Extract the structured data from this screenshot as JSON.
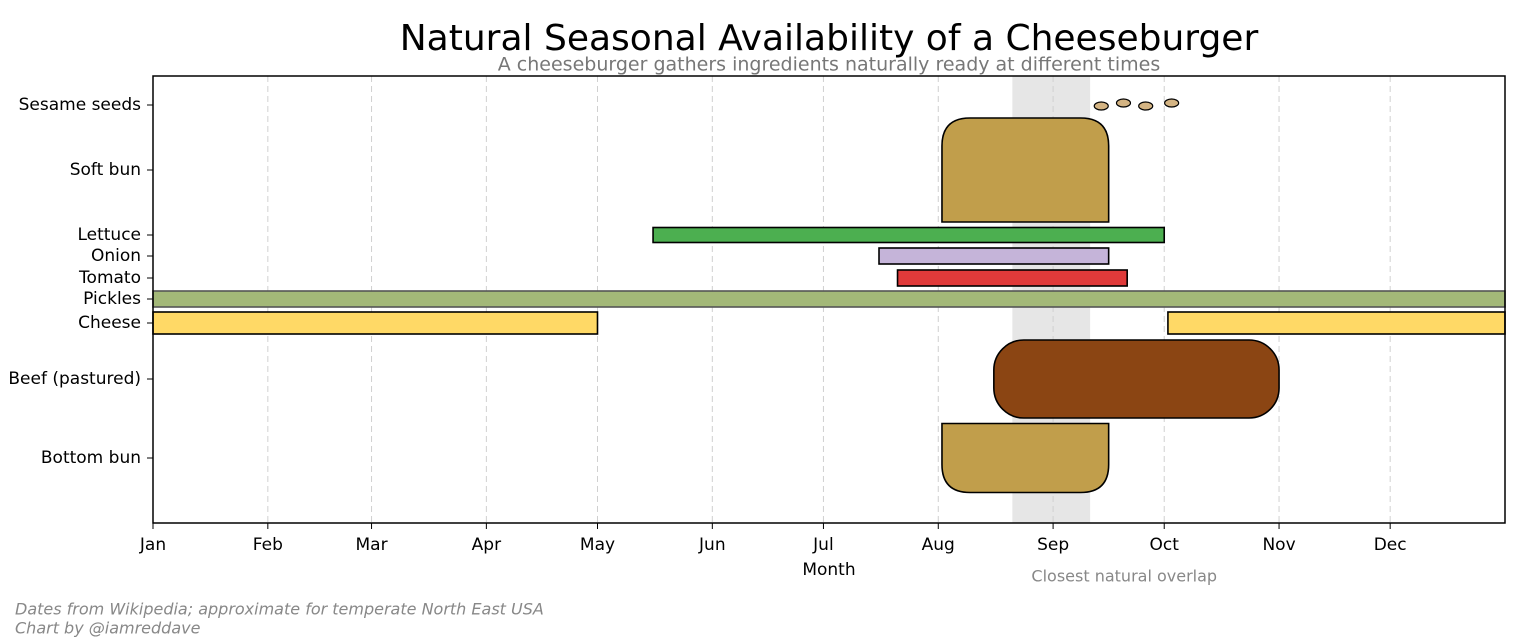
{
  "chart_data": {
    "type": "timeline",
    "title": "Natural Seasonal Availability of a Cheeseburger",
    "subtitle": "A cheeseburger gathers ingredients naturally ready at different times",
    "xlabel": "Month",
    "xlim": [
      0,
      365
    ],
    "xticks": [
      {
        "value": 0,
        "label": "Jan"
      },
      {
        "value": 31,
        "label": "Feb"
      },
      {
        "value": 59,
        "label": "Mar"
      },
      {
        "value": 90,
        "label": "Apr"
      },
      {
        "value": 120,
        "label": "May"
      },
      {
        "value": 151,
        "label": "Jun"
      },
      {
        "value": 181,
        "label": "Jul"
      },
      {
        "value": 212,
        "label": "Aug"
      },
      {
        "value": 243,
        "label": "Sep"
      },
      {
        "value": 273,
        "label": "Oct"
      },
      {
        "value": 304,
        "label": "Nov"
      },
      {
        "value": 334,
        "label": "Dec"
      }
    ],
    "grid": true,
    "tasks": [
      {
        "label": "Sesame seeds",
        "color": "#d4b483",
        "points": [
          256,
          262,
          268,
          275
        ]
      },
      {
        "label": "Soft bun",
        "color": "#c19e4b",
        "segments": [
          {
            "start": 213,
            "end": 258
          }
        ]
      },
      {
        "label": "Lettuce",
        "color": "#4caf50",
        "segments": [
          {
            "start": 135,
            "end": 273
          }
        ]
      },
      {
        "label": "Onion",
        "color": "#c5b4d9",
        "segments": [
          {
            "start": 196,
            "end": 258
          }
        ]
      },
      {
        "label": "Tomato",
        "color": "#e03a3a",
        "segments": [
          {
            "start": 201,
            "end": 263
          }
        ]
      },
      {
        "label": "Pickles",
        "color": "#a3b878",
        "segments": [
          {
            "start": 0,
            "end": 365
          }
        ]
      },
      {
        "label": "Cheese",
        "color": "#ffd966",
        "segments": [
          {
            "start": 0,
            "end": 120
          },
          {
            "start": 274,
            "end": 365
          }
        ]
      },
      {
        "label": "Beef (pastured)",
        "color": "#8b4513",
        "segments": [
          {
            "start": 227,
            "end": 304
          }
        ]
      },
      {
        "label": "Bottom bun",
        "color": "#c19e4b",
        "segments": [
          {
            "start": 213,
            "end": 258
          }
        ]
      }
    ],
    "overlap": {
      "start": 232,
      "end": 253,
      "label": "Closest natural overlap"
    },
    "notes": [
      "Dates from Wikipedia; approximate for temperate North East USA",
      "Chart by @iamreddave"
    ]
  }
}
